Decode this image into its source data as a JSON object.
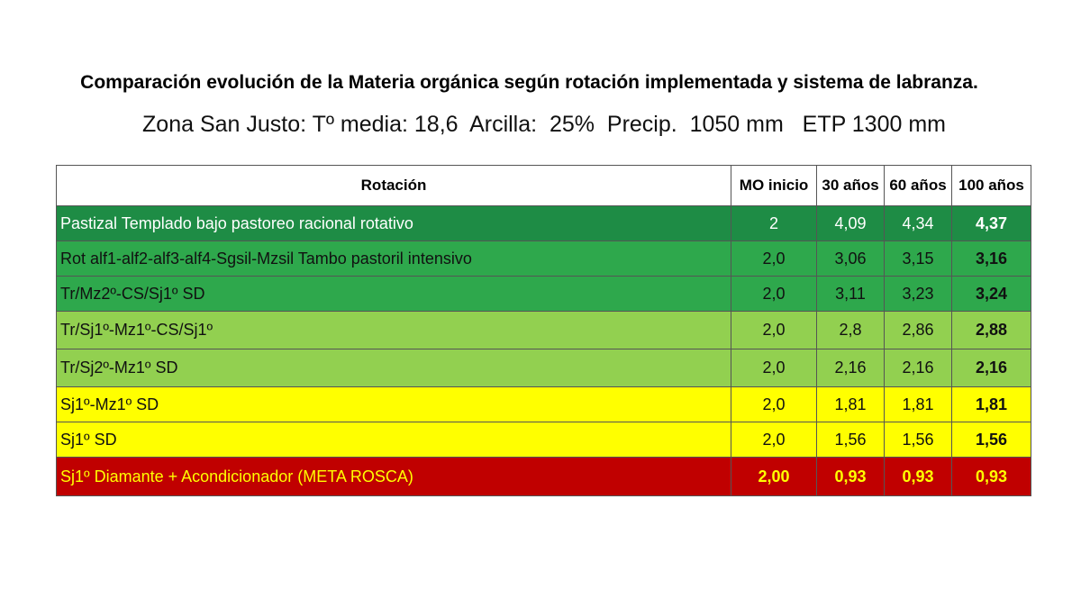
{
  "header": {
    "title": "Comparación evolución de la Materia orgánica según rotación implementada y sistema de labranza.",
    "subtitle": "Zona San Justo: Tº media: 18,6  Arcilla:  25%  Precip.  1050 mm   ETP 1300 mm"
  },
  "table": {
    "columns": [
      "Rotación",
      "MO inicio",
      "30 años",
      "60 años",
      "100 años"
    ],
    "rows": [
      [
        "Pastizal Templado bajo pastoreo racional rotativo",
        "2",
        "4,09",
        "4,34",
        "4,37"
      ],
      [
        "Rot alf1-alf2-alf3-alf4-Sgsil-Mzsil Tambo pastoril intensivo",
        "2,0",
        "3,06",
        "3,15",
        "3,16"
      ],
      [
        "Tr/Mz2º-CS/Sj1º SD",
        "2,0",
        "3,11",
        "3,23",
        "3,24"
      ],
      [
        "Tr/Sj1º-Mz1º-CS/Sj1º",
        "2,0",
        "2,8",
        "2,86",
        "2,88"
      ],
      [
        "Tr/Sj2º-Mz1º SD",
        "2,0",
        "2,16",
        "2,16",
        "2,16"
      ],
      [
        "Sj1º-Mz1º SD",
        "2,0",
        "1,81",
        "1,81",
        "1,81"
      ],
      [
        "Sj1º SD",
        "2,0",
        "1,56",
        "1,56",
        "1,56"
      ],
      [
        "Sj1º Diamante + Acondicionador (META ROSCA)",
        "2,00",
        "0,93",
        "0,93",
        "0,93"
      ]
    ]
  }
}
